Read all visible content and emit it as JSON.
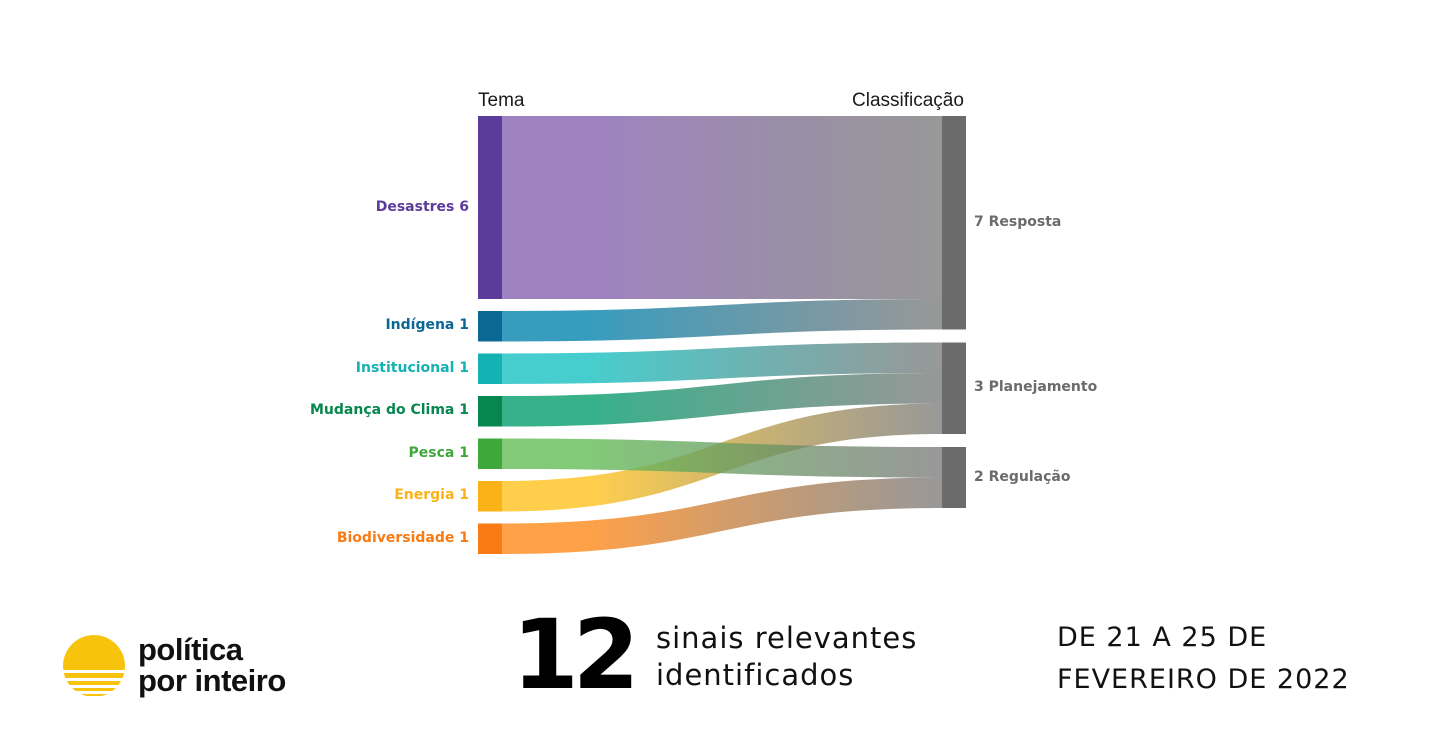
{
  "headers": {
    "left": "Tema",
    "right": "Classificação"
  },
  "source_nodes": [
    {
      "name": "Desastres",
      "value": 6,
      "label": "Desastres 6",
      "color": "#5b3b9c"
    },
    {
      "name": "Indígena",
      "value": 1,
      "label": "Indígena 1",
      "color": "#0b6894"
    },
    {
      "name": "Institucional",
      "value": 1,
      "label": "Institucional 1",
      "color": "#14b2b2"
    },
    {
      "name": "Mudança do Clima",
      "value": 1,
      "label": "Mudança do Clima 1",
      "color": "#06874f"
    },
    {
      "name": "Pesca",
      "value": 1,
      "label": "Pesca 1",
      "color": "#3fa83a"
    },
    {
      "name": "Energia",
      "value": 1,
      "label": "Energia 1",
      "color": "#fbb216"
    },
    {
      "name": "Biodiversidade",
      "value": 1,
      "label": "Biodiversidade 1",
      "color": "#f97b13"
    }
  ],
  "target_nodes": [
    {
      "name": "Resposta",
      "value": 7,
      "label": "7 Resposta",
      "color": "#6b6b6b"
    },
    {
      "name": "Planejamento",
      "value": 3,
      "label": "3 Planejamento",
      "color": "#6b6b6b"
    },
    {
      "name": "Regulação",
      "value": 2,
      "label": "2 Regulação",
      "color": "#6b6b6b"
    }
  ],
  "links": [
    {
      "source": "Desastres",
      "target": "Resposta",
      "value": 6,
      "color": "#8a67b3"
    },
    {
      "source": "Indígena",
      "target": "Resposta",
      "value": 1,
      "color": "#0c86b0"
    },
    {
      "source": "Institucional",
      "target": "Planejamento",
      "value": 1,
      "color": "#1ec2c2"
    },
    {
      "source": "Mudança do Clima",
      "target": "Planejamento",
      "value": 1,
      "color": "#0aa070"
    },
    {
      "source": "Energia",
      "target": "Planejamento",
      "value": 1,
      "color": "#ffc425"
    },
    {
      "source": "Pesca",
      "target": "Regulação",
      "value": 1,
      "color": "#66bd5a"
    },
    {
      "source": "Biodiversidade",
      "target": "Regulação",
      "value": 1,
      "color": "#ff8c20"
    }
  ],
  "footer": {
    "brand_line1": "política",
    "brand_line2": "por inteiro",
    "count": "12",
    "subtitle_line1": "sinais relevantes",
    "subtitle_line2": "identificados",
    "period_line1": "DE 21 A 25 DE",
    "period_line2": "FEVEREIRO DE 2022",
    "brand_color": "#f8c30c"
  }
}
